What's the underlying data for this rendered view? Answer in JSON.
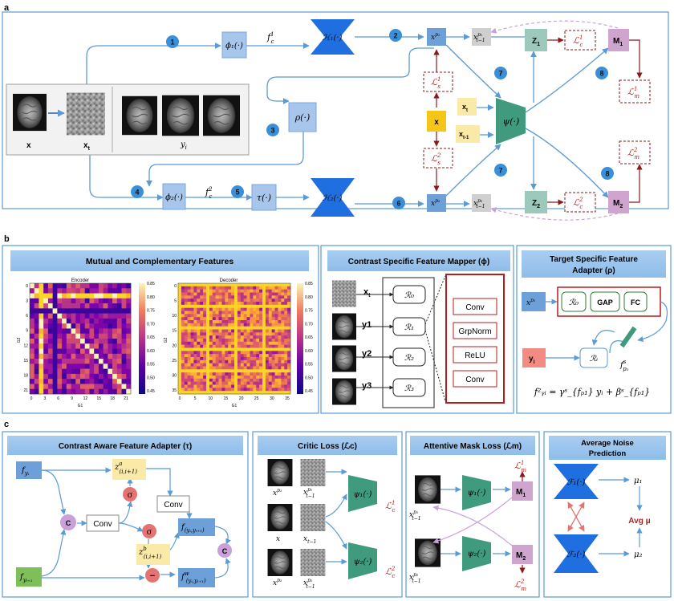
{
  "labels": {
    "a": "a",
    "b": "b",
    "c": "c"
  },
  "panel_a": {
    "steps": [
      "1",
      "2",
      "3",
      "4",
      "5",
      "6",
      "7",
      "7",
      "8",
      "8"
    ],
    "phi1": "ϕ₁(·)",
    "phi2": "ϕ₂(·)",
    "fc1": "f",
    "fc1_sup": "1",
    "fc1_sub": "c",
    "fc2": "f",
    "fc2_sup": "2",
    "fc2_sub": "c",
    "H1": "ℋ₁(·)",
    "H2": "ℋ₂(·)",
    "rho": "ρ(·)",
    "tau": "τ(·)",
    "psi": "ψ(·)",
    "xp1": "x",
    "xp1_sup": "p₁",
    "xp2": "x",
    "xp2_sup": "p₂",
    "xt1p1": "x",
    "xt1p1_sup": "p₁",
    "xt1p1_sub": "t−1",
    "xt1p2": "x",
    "xt1p2_sub": "t−1",
    "xt1p2_sup": "p₂",
    "Ls1": "ℒ",
    "Ls1_sup": "1",
    "Ls1_sub": "s",
    "Ls2": "ℒ",
    "Ls2_sup": "2",
    "Ls2_sub": "s",
    "x_box": "x",
    "xt_box": "x",
    "xt_box_sub": "t",
    "xt1_box": "x",
    "xt1_box_sub": "t-1",
    "Z1": "Z",
    "Z1_sub": "1",
    "Z2": "Z",
    "Z2_sub": "2",
    "Lc1": "ℒ",
    "Lc1_sup": "1",
    "Lc1_sub": "c",
    "Lc2": "ℒ",
    "Lc2_sup": "2",
    "Lc2_sub": "c",
    "M1": "M",
    "M1_sub": "1",
    "M2": "M",
    "M2_sub": "2",
    "Lm1": "ℒ",
    "Lm1_sup": "1",
    "Lm1_sub": "m",
    "Lm2": "ℒ",
    "Lm2_sup": "2",
    "Lm2_sub": "m",
    "img_x": "x",
    "img_xt": "x",
    "img_xt_sub": "t",
    "img_yi": "y",
    "img_yi_sub": "i"
  },
  "panel_b": {
    "mutual_title": "Mutual and Complementary Features",
    "enc_title": "Encoder",
    "dec_title": "Decoder",
    "enc_x_ticks": [
      "0",
      "3",
      "6",
      "9",
      "12",
      "15",
      "18",
      "21"
    ],
    "enc_y_ticks": [
      "0",
      "3",
      "6",
      "9",
      "12",
      "15",
      "18",
      "21"
    ],
    "dec_x_ticks": [
      "0",
      "5",
      "10",
      "15",
      "20",
      "25",
      "30",
      "35"
    ],
    "dec_y_ticks": [
      "0",
      "5",
      "10",
      "15",
      "20",
      "25",
      "30",
      "35"
    ],
    "cbar_ticks": [
      "0.85",
      "0.80",
      "0.75",
      "0.70",
      "0.65",
      "0.60",
      "0.55",
      "0.50",
      "0.45"
    ],
    "axis_g1": "G1",
    "axis_g2": "G2",
    "mapper_title": "Contrast Specific Feature Mapper (ϕ)",
    "mapper_inputs": [
      "x",
      "y1",
      "y2",
      "y3"
    ],
    "mapper_inputs_sub": [
      "t",
      "",
      "",
      ""
    ],
    "R": [
      "ℛ₀",
      "ℛ₁",
      "ℛ₂",
      "ℛ₃"
    ],
    "layers": [
      "Conv",
      "GrpNorm",
      "ReLU",
      "Conv"
    ],
    "adapter_title_1": "Target Specific Feature",
    "adapter_title_2": "Adapter (ρ)",
    "xp1": "x",
    "xp1_sup": "p₁",
    "R0": "ℛ₀",
    "GAP": "GAP",
    "FC": "FC",
    "yi": "y",
    "yi_sub": "i",
    "Ri": "ℛᵢ",
    "fs": "f",
    "fs_sup": "s",
    "fs_sub": "p₁",
    "eq": "f²ᵧᵢ = γˢ_{fₚ₁} yᵢ + βˢ_{fₚ₁}"
  },
  "panel_c": {
    "tau_title": "Contrast Aware Feature Adapter (τ)",
    "fyi": "f",
    "fyi_sub": "yᵢ",
    "fyi1": "f",
    "fyi1_sub": "yᵢ₊₁",
    "za": "z",
    "za_sup": "a",
    "za_sub": "(i,i+1)",
    "zb": "z",
    "zb_sup": "b",
    "zb_sub": "(i,i+1)",
    "conv": "Conv",
    "C": "C",
    "sigma": "σ",
    "minus": "−",
    "fyy": "f",
    "fyy_sub": "(yᵢ,yᵢ₊₁)",
    "fw": "f",
    "fw_sup": "w",
    "fw_sub": "(yᵢ,yᵢ₊₁)",
    "critic_title": "Critic Loss (ℒc)",
    "critic_xp1": "x",
    "critic_xp1_sup": "p₁",
    "critic_xt1p1": "x",
    "critic_xt1p1_sup": "p₁",
    "critic_xt1p1_sub": "t−1",
    "critic_x": "x",
    "critic_xt1": "x",
    "critic_xt1_sub": "t−1",
    "critic_xp2": "x",
    "critic_xp2_sup": "p₂",
    "critic_xt1p2": "x",
    "critic_xt1p2_sup": "p₂",
    "critic_xt1p2_sub": "t−1",
    "psi1": "ψ₁(·)",
    "psi2": "ψ₂(·)",
    "Lc1": "ℒ",
    "Lc1_sup": "1",
    "Lc1_sub": "c",
    "Lc2": "ℒ",
    "Lc2_sup": "2",
    "Lc2_sub": "c",
    "mask_title": "Attentive Mask Loss (ℒm)",
    "mask_xt1p1": "x",
    "mask_xt1p1_sup": "p₁",
    "mask_xt1p1_sub": "t−1",
    "mask_xt1p2": "x",
    "mask_xt1p2_sup": "p₂",
    "mask_xt1p2_sub": "t−1",
    "M1": "M",
    "M1_sub": "1",
    "M2": "M",
    "M2_sub": "2",
    "Lm1": "ℒ",
    "Lm1_sup": "1",
    "Lm1_sub": "m",
    "Lm2": "ℒ",
    "Lm2_sup": "2",
    "Lm2_sub": "m",
    "noise_title_1": "Average Noise",
    "noise_title_2": "Prediction",
    "F1": "ℱ₁(·)",
    "F2": "ℱ₂(·)",
    "mu1": "μ₁",
    "mu2": "μ₂",
    "avg": "Avg μ"
  }
}
